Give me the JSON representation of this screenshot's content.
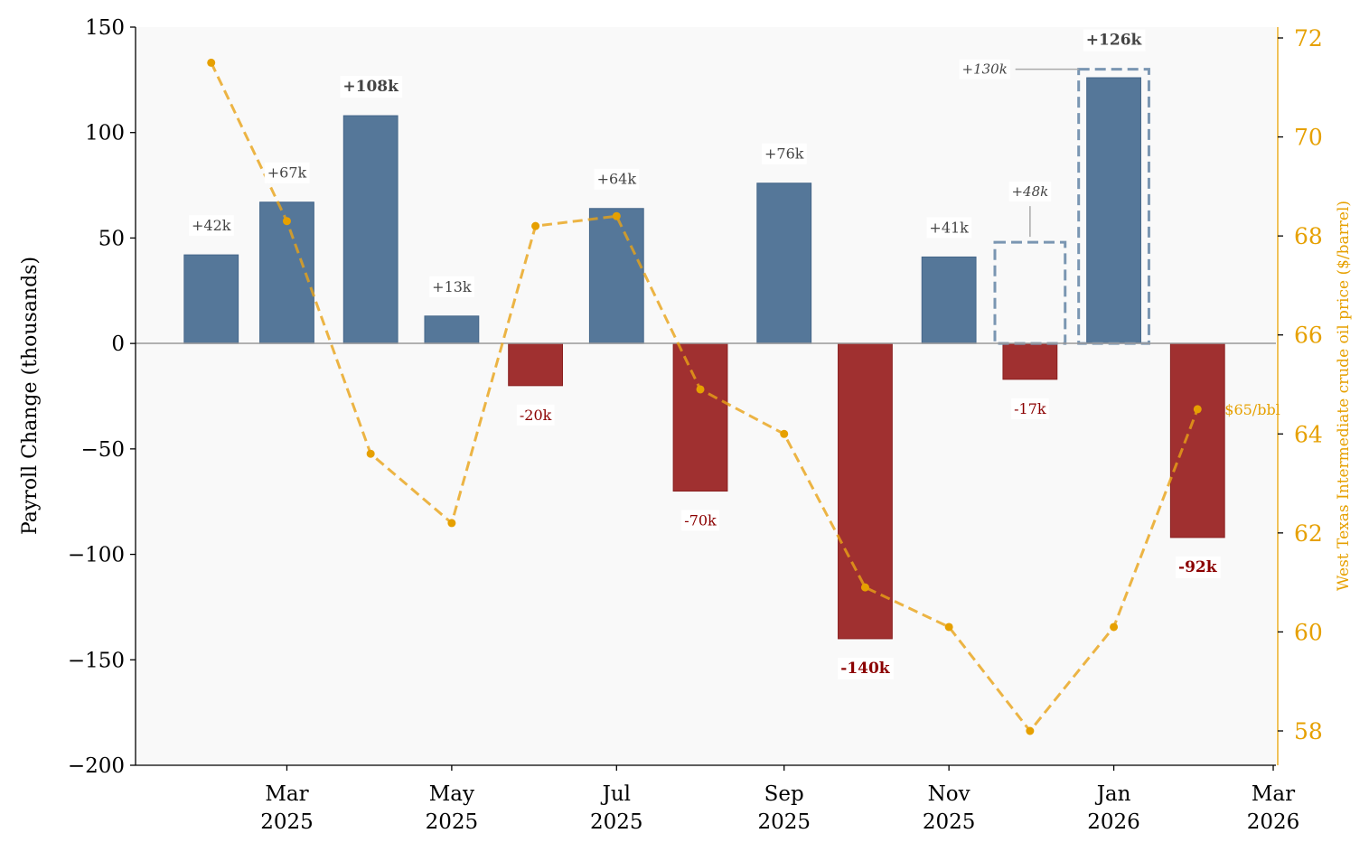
{
  "chart_data": {
    "type": "bar",
    "xlabel": "",
    "ylabel": "Payroll Change (thousands)",
    "ylabel_right": "West Texas Intermediate crude oil price ($/barrel)",
    "ylim": [
      -200,
      150
    ],
    "ylim_right": [
      57.3,
      72.2
    ],
    "yticks": [
      -200,
      -150,
      -100,
      -50,
      0,
      50,
      100,
      150
    ],
    "yticks_right": [
      58,
      60,
      62,
      64,
      66,
      68,
      70,
      72
    ],
    "xticks": [
      {
        "date": "2025-03-01",
        "label": [
          "Mar",
          "2025"
        ]
      },
      {
        "date": "2025-05-01",
        "label": [
          "May",
          "2025"
        ]
      },
      {
        "date": "2025-07-01",
        "label": [
          "Jul",
          "2025"
        ]
      },
      {
        "date": "2025-09-01",
        "label": [
          "Sep",
          "2025"
        ]
      },
      {
        "date": "2025-11-01",
        "label": [
          "Nov",
          "2025"
        ]
      },
      {
        "date": "2026-01-01",
        "label": [
          "Jan",
          "2026"
        ]
      },
      {
        "date": "2026-03-01",
        "label": [
          "Mar",
          "2026"
        ]
      }
    ],
    "xlim": [
      "2025-01-04",
      "2026-03-02"
    ],
    "grid": false,
    "series": [
      {
        "kind": "bar",
        "dates": [
          "2025-02-01",
          "2025-03-01",
          "2025-04-01",
          "2025-05-01",
          "2025-06-01",
          "2025-07-01",
          "2025-08-01",
          "2025-09-01",
          "2025-10-01",
          "2025-11-01",
          "2025-12-01",
          "2026-01-01",
          "2026-02-01"
        ],
        "values": [
          42,
          67,
          108,
          13,
          -20,
          64,
          -70,
          76,
          -140,
          41,
          -17,
          126,
          -92
        ],
        "labels": [
          "+42k",
          "+67k",
          "+108k",
          "+13k",
          "-20k",
          "+64k",
          "-70k",
          "+76k",
          "-140k",
          "+41k",
          "-17k",
          "+126k",
          "-92k"
        ],
        "bold": [
          false,
          false,
          true,
          false,
          false,
          false,
          false,
          false,
          true,
          false,
          false,
          true,
          true
        ]
      },
      {
        "kind": "bar-outline-dashed",
        "dates": [
          "2025-12-01",
          "2026-01-01"
        ],
        "values": [
          48,
          130
        ],
        "labels": [
          "+48k",
          "+130k"
        ]
      },
      {
        "kind": "line-dashed",
        "axis": "right",
        "dates": [
          "2025-02-01",
          "2025-03-01",
          "2025-04-01",
          "2025-05-01",
          "2025-06-01",
          "2025-07-01",
          "2025-08-01",
          "2025-09-01",
          "2025-10-01",
          "2025-11-01",
          "2025-12-01",
          "2026-01-01",
          "2026-02-01"
        ],
        "values": [
          71.5,
          68.3,
          63.6,
          62.2,
          68.2,
          68.4,
          64.9,
          64.0,
          60.9,
          60.1,
          58.0,
          60.1,
          64.5
        ]
      }
    ],
    "annotations": [
      {
        "text": "$65/bbl",
        "date": "2026-02-01",
        "value": 64.5
      }
    ],
    "colors": {
      "positive": "#557799",
      "negative": "#a03030",
      "positive_label": "#444444",
      "negative_label": "#8b0000",
      "oil": "#e8a317",
      "oil_axis": "#e6a000",
      "revision": "#7a96b2",
      "zero_line": "#999999",
      "plot_bg": "#f9f9f9"
    }
  }
}
